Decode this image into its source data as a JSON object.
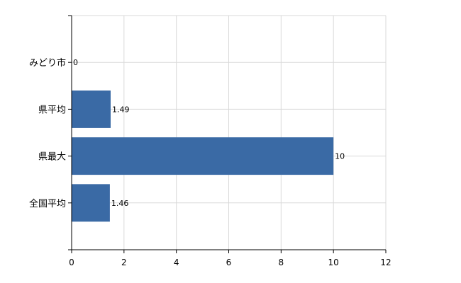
{
  "chart_data": {
    "type": "bar",
    "orientation": "horizontal",
    "categories": [
      "みどり市",
      "県平均",
      "県最大",
      "全国平均"
    ],
    "values": [
      0,
      1.49,
      10,
      1.46
    ],
    "data_labels": [
      "0",
      "1.49",
      "10",
      "1.46"
    ],
    "x_ticks": [
      "0",
      "2",
      "4",
      "6",
      "8",
      "10",
      "12"
    ],
    "xlim": [
      0,
      12
    ],
    "grid": true,
    "bar_color": "#3a6aa5",
    "grid_color": "#d9d9d9",
    "axis_color": "#000000"
  }
}
